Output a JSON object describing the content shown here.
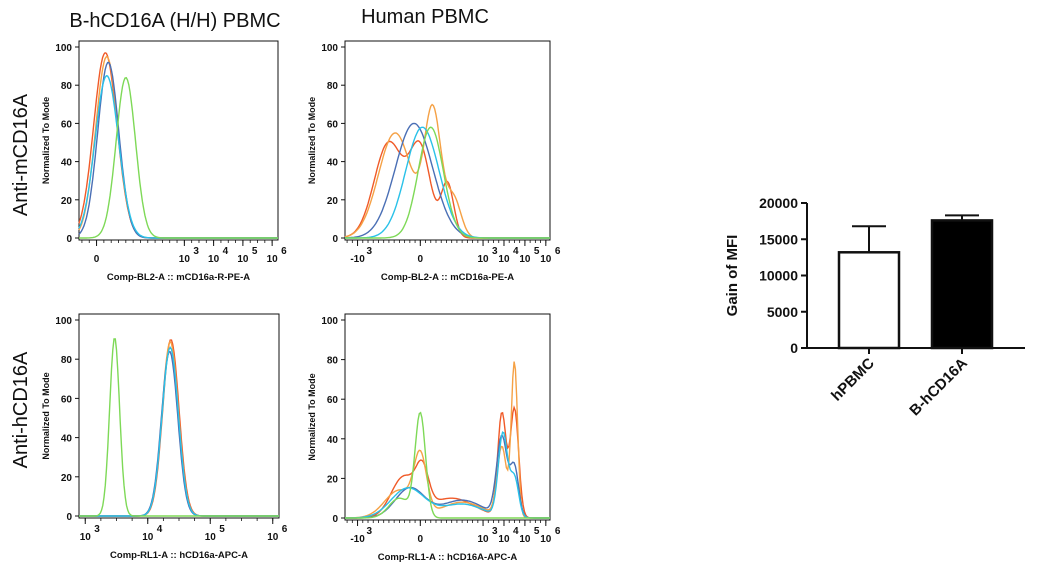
{
  "column_titles": [
    "B-hCD16A (H/H) PBMC",
    "Human PBMC"
  ],
  "row_titles": [
    "Anti-mCD16A",
    "Anti-hCD16A"
  ],
  "chart_data": [
    {
      "type": "line",
      "panel": "B-hCD16A (H/H) PBMC / Anti-mCD16A",
      "ylabel": "Normalized To Mode",
      "xlabel": "Comp-BL2-A :: mCD16a-R-PE-A",
      "ylim": [
        0,
        100
      ],
      "yticks": [
        "0",
        "20",
        "40",
        "60",
        "80",
        "100"
      ],
      "xticks": [
        {
          "x": 0.0,
          "label": "0"
        },
        {
          "x": 3,
          "label": "10"
        },
        {
          "x": 4,
          "label": "10"
        },
        {
          "x": 5,
          "label": "10"
        },
        {
          "x": 6,
          "label": "10"
        }
      ],
      "xtick_exps": [
        "",
        "3",
        "4",
        "5",
        "6"
      ],
      "xlim": [
        -0.6,
        6.2
      ],
      "series": [
        {
          "color": "#f05a28",
          "peaks": [
            {
              "mu": 0.3,
              "sd": 0.4,
              "h": 97
            }
          ]
        },
        {
          "color": "#f5a145",
          "peaks": [
            {
              "mu": 0.35,
              "sd": 0.38,
              "h": 95
            }
          ]
        },
        {
          "color": "#4a6fb5",
          "peaks": [
            {
              "mu": 0.4,
              "sd": 0.36,
              "h": 92
            }
          ]
        },
        {
          "color": "#29c1e8",
          "peaks": [
            {
              "mu": 0.35,
              "sd": 0.4,
              "h": 85
            }
          ]
        },
        {
          "color": "#7ed957",
          "peaks": [
            {
              "mu": 1.0,
              "sd": 0.33,
              "h": 84
            }
          ]
        }
      ]
    },
    {
      "type": "line",
      "panel": "Human PBMC / Anti-mCD16A",
      "ylabel": "Normalized To Mode",
      "xlabel": "Comp-BL2-A :: mCD16a-PE-A",
      "ylim": [
        0,
        100
      ],
      "yticks": [
        "0",
        "20",
        "40",
        "60",
        "80",
        "100"
      ],
      "xticks": [
        {
          "x": -3,
          "label": "-10"
        },
        {
          "x": 0.0,
          "label": "0"
        },
        {
          "x": 3,
          "label": "10"
        },
        {
          "x": 4,
          "label": "10"
        },
        {
          "x": 5,
          "label": "10"
        },
        {
          "x": 6,
          "label": "10"
        }
      ],
      "xtick_exps": [
        "3",
        "",
        "3",
        "4",
        "5",
        "6"
      ],
      "xlim": [
        -3.6,
        6.2
      ],
      "series": [
        {
          "color": "#f05a28",
          "peaks": [
            {
              "mu": -1.5,
              "sd": 0.7,
              "h": 50
            },
            {
              "mu": 0.0,
              "sd": 0.5,
              "h": 45
            },
            {
              "mu": 1.3,
              "sd": 0.3,
              "h": 28
            }
          ]
        },
        {
          "color": "#f5a145",
          "peaks": [
            {
              "mu": -1.2,
              "sd": 0.8,
              "h": 55
            },
            {
              "mu": 0.6,
              "sd": 0.4,
              "h": 65
            },
            {
              "mu": 1.6,
              "sd": 0.35,
              "h": 20
            }
          ]
        },
        {
          "color": "#4a6fb5",
          "peaks": [
            {
              "mu": -0.3,
              "sd": 0.9,
              "h": 60
            }
          ]
        },
        {
          "color": "#29c1e8",
          "peaks": [
            {
              "mu": 0.1,
              "sd": 0.8,
              "h": 58
            }
          ]
        },
        {
          "color": "#7ed957",
          "peaks": [
            {
              "mu": 0.5,
              "sd": 0.6,
              "h": 58
            }
          ]
        }
      ]
    },
    {
      "type": "line",
      "panel": "B-hCD16A (H/H) PBMC / Anti-hCD16A",
      "ylabel": "Normalized To Mode",
      "xlabel": "Comp-RL1-A :: hCD16a-APC-A",
      "ylim": [
        0,
        100
      ],
      "yticks": [
        "0",
        "20",
        "40",
        "60",
        "80",
        "100"
      ],
      "xticks": [
        {
          "x": 3,
          "label": "10"
        },
        {
          "x": 4,
          "label": "10"
        },
        {
          "x": 5,
          "label": "10"
        },
        {
          "x": 6,
          "label": "10"
        }
      ],
      "xtick_exps": [
        "3",
        "4",
        "5",
        "6"
      ],
      "xlim": [
        2.9,
        6.1
      ],
      "series": [
        {
          "color": "#f05a28",
          "peaks": [
            {
              "mu": 4.37,
              "sd": 0.13,
              "h": 90
            }
          ]
        },
        {
          "color": "#f5a145",
          "peaks": [
            {
              "mu": 4.36,
              "sd": 0.13,
              "h": 89
            }
          ]
        },
        {
          "color": "#4a6fb5",
          "peaks": [
            {
              "mu": 4.35,
              "sd": 0.13,
              "h": 84
            }
          ]
        },
        {
          "color": "#29c1e8",
          "peaks": [
            {
              "mu": 4.36,
              "sd": 0.13,
              "h": 86
            }
          ]
        },
        {
          "color": "#7ed957",
          "peaks": [
            {
              "mu": 3.47,
              "sd": 0.08,
              "h": 91
            }
          ]
        }
      ]
    },
    {
      "type": "line",
      "panel": "Human PBMC / Anti-hCD16A",
      "ylabel": "Normalized To Mode",
      "xlabel": "Comp-RL1-A :: hCD16A-APC-A",
      "ylim": [
        0,
        100
      ],
      "yticks": [
        "0",
        "20",
        "40",
        "60",
        "80",
        "100"
      ],
      "xticks": [
        {
          "x": -3,
          "label": "-10"
        },
        {
          "x": 0.0,
          "label": "0"
        },
        {
          "x": 3,
          "label": "10"
        },
        {
          "x": 4,
          "label": "10"
        },
        {
          "x": 5,
          "label": "10"
        },
        {
          "x": 6,
          "label": "10"
        }
      ],
      "xtick_exps": [
        "3",
        "",
        "3",
        "4",
        "5",
        "6"
      ],
      "xlim": [
        -3.6,
        6.2
      ],
      "series": [
        {
          "color": "#f05a28",
          "peaks": [
            {
              "mu": -0.8,
              "sd": 0.6,
              "h": 20
            },
            {
              "mu": 0.1,
              "sd": 0.3,
              "h": 18
            },
            {
              "mu": 1.5,
              "sd": 1.1,
              "h": 10
            },
            {
              "mu": 3.9,
              "sd": 0.2,
              "h": 52
            },
            {
              "mu": 4.5,
              "sd": 0.2,
              "h": 55
            }
          ]
        },
        {
          "color": "#f5a145",
          "peaks": [
            {
              "mu": 0.0,
              "sd": 0.3,
              "h": 28
            },
            {
              "mu": -1.0,
              "sd": 0.7,
              "h": 14
            },
            {
              "mu": 2.0,
              "sd": 1.0,
              "h": 8
            },
            {
              "mu": 3.9,
              "sd": 0.22,
              "h": 35
            },
            {
              "mu": 4.5,
              "sd": 0.15,
              "h": 78
            }
          ]
        },
        {
          "color": "#4a6fb5",
          "peaks": [
            {
              "mu": -0.5,
              "sd": 0.7,
              "h": 15
            },
            {
              "mu": 2.0,
              "sd": 1.0,
              "h": 9
            },
            {
              "mu": 3.9,
              "sd": 0.25,
              "h": 40
            },
            {
              "mu": 4.5,
              "sd": 0.2,
              "h": 25
            }
          ]
        },
        {
          "color": "#29c1e8",
          "peaks": [
            {
              "mu": -0.6,
              "sd": 0.8,
              "h": 15
            },
            {
              "mu": 2.0,
              "sd": 1.0,
              "h": 7
            },
            {
              "mu": 3.95,
              "sd": 0.22,
              "h": 42
            },
            {
              "mu": 4.5,
              "sd": 0.2,
              "h": 20
            }
          ]
        },
        {
          "color": "#7ed957",
          "peaks": [
            {
              "mu": 0.0,
              "sd": 0.25,
              "h": 52
            },
            {
              "mu": -1.0,
              "sd": 0.5,
              "h": 10
            }
          ]
        }
      ]
    },
    {
      "type": "bar",
      "panel": "Gain of MFI",
      "categories": [
        "hPBMC",
        "B-hCD16A"
      ],
      "values": [
        13200,
        17600
      ],
      "errors": [
        3600,
        700
      ],
      "fills": [
        "#ffffff",
        "#000000"
      ],
      "ylabel": "Gain of MFI",
      "ylim": [
        0,
        20000
      ],
      "yticks": [
        "0",
        "5000",
        "10000",
        "15000",
        "20000"
      ]
    }
  ]
}
